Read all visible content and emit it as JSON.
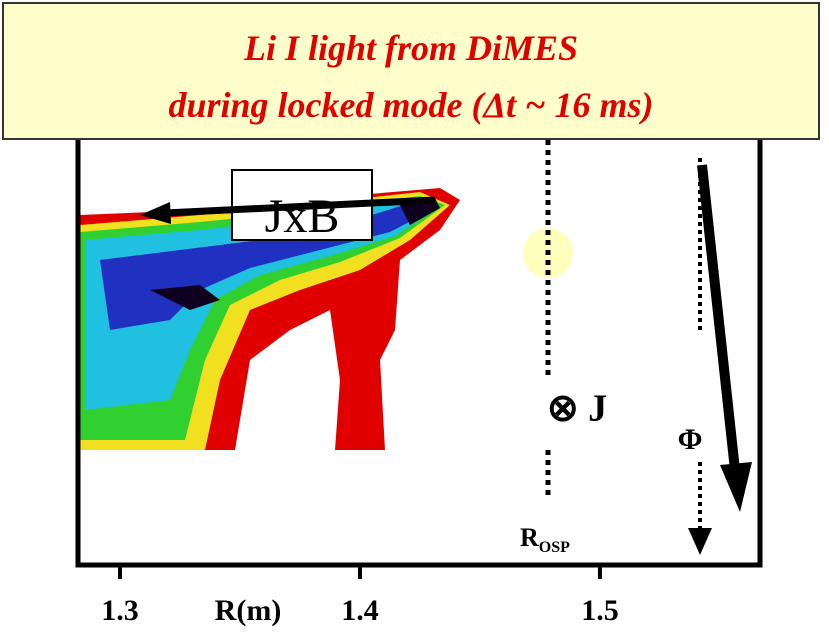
{
  "chart_data": {
    "type": "image",
    "title": [
      "Li I light from DiMES",
      "during locked mode (Δt  ~ 16 ms)"
    ],
    "xlabel": "R(m)",
    "xlim": [
      1.2825,
      1.5667
    ],
    "xticks": [
      1.3,
      1.4,
      1.5
    ],
    "annotations": {
      "force": "JxB",
      "current": "⊗ J",
      "toroidal": "Φ",
      "osp": "R",
      "osp_sub": "OSP"
    }
  }
}
